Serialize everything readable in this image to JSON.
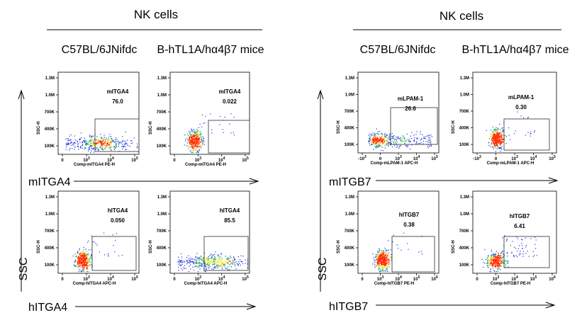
{
  "panels": [
    {
      "title": "NK cells",
      "strains": [
        "C57BL/6JNifdc",
        "B-hTL1A/hα4β7 mice"
      ],
      "y_axis_label": "SSC",
      "rows": [
        {
          "marker_label": "mITGA4",
          "plots": [
            {
              "gate": "mITGA4",
              "value": "76.0",
              "x_axis": "Comp-mITGA4 PE-H",
              "ticks": "type1",
              "pop": "high"
            },
            {
              "gate": "mITGA4",
              "value": "0.022",
              "x_axis": "Comp-mITGA4 PE-H",
              "ticks": "type1",
              "pop": "neg"
            }
          ]
        },
        {
          "marker_label": "hITGA4",
          "plots": [
            {
              "gate": "hITGA4",
              "value": "0.050",
              "x_axis": "Comp-hITGA4 APC-H",
              "ticks": "type1",
              "pop": "neg"
            },
            {
              "gate": "hITGA4",
              "value": "85.5",
              "x_axis": "Comp-hITGA4 APC-H",
              "ticks": "type1",
              "pop": "high"
            }
          ]
        }
      ]
    },
    {
      "title": "NK cells",
      "strains": [
        "C57BL/6JNifdc",
        "B-hTL1A/hα4β7 mice"
      ],
      "y_axis_label": "SSC",
      "rows": [
        {
          "marker_label": "mITGB7",
          "plots": [
            {
              "gate": "mLPAM-1",
              "value": "26.6",
              "x_axis": "Comp-mLPAM-1 APC-H",
              "ticks": "type2",
              "pop": "mid"
            },
            {
              "gate": "mLPAM-1",
              "value": "0.30",
              "x_axis": "Comp-mLPAM-1 APC-H",
              "ticks": "type2",
              "pop": "neg"
            }
          ]
        },
        {
          "marker_label": "hITGB7",
          "plots": [
            {
              "gate": "hITGB7",
              "value": "0.38",
              "x_axis": "Comp-hITGB7 PE-H",
              "ticks": "type3",
              "pop": "neg"
            },
            {
              "gate": "hITGB7",
              "value": "6.41",
              "x_axis": "Comp-hITGB7 PE-H",
              "ticks": "type3",
              "pop": "low"
            }
          ]
        }
      ]
    }
  ],
  "y_ticks": [
    "1.3M",
    "1.0M",
    "700K",
    "400K",
    "100K"
  ],
  "y_axis_title": "SSC-H",
  "x_tick_sets": {
    "type1": [
      "0",
      "10^3",
      "10^4",
      "10^5"
    ],
    "type2": [
      "-10^3",
      "0",
      "10^3",
      "10^4",
      "10^5"
    ],
    "type3": [
      "0",
      "10^3",
      "10^4",
      "10^5",
      "10^6"
    ]
  },
  "colors": {
    "dense": "#ff2a00",
    "mid": "#f2e51a",
    "light": "#22b05a",
    "sparse": "#1a2fd9",
    "axis": "#000000",
    "gate": "#444444"
  }
}
